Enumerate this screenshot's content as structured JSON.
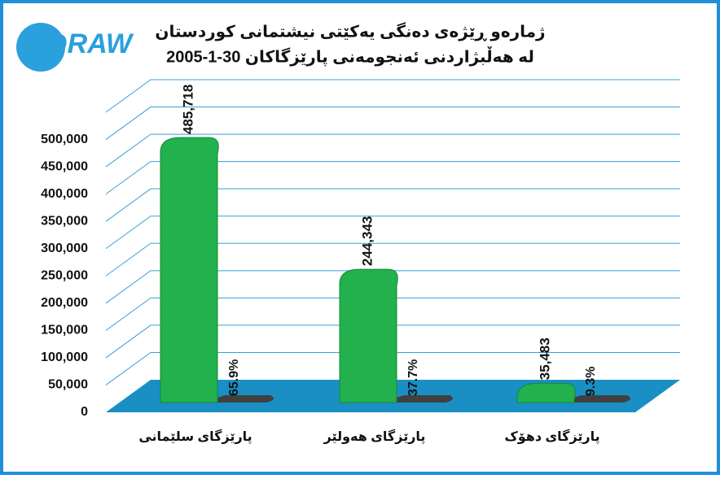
{
  "chart_data": {
    "type": "bar3d",
    "logo": "DRAW",
    "title": [
      "ژمارەو ڕێژەی دەنگی یەکێتی نیشتمانی کوردستان",
      "لە هەڵبژاردنی ئەنجومەنی پارێزگاکان 30-1-2005"
    ],
    "categories": [
      "پارێزگای سلێمانی",
      "پارێزگای هەولێر",
      "پارێزگای دهۆک"
    ],
    "series": [
      {
        "color": "#22b14c",
        "values": [
          485718,
          244343,
          35483
        ],
        "value_labels": [
          "485,718",
          "244,343",
          "35,483"
        ]
      },
      {
        "color": "#404040",
        "values": [
          65.9,
          37.7,
          9.3
        ],
        "value_labels": [
          "65.9%",
          "37.7%",
          "9.3%"
        ]
      }
    ],
    "ylim": [
      0,
      550000
    ],
    "yticks": [
      0,
      {
        "value": 50000,
        "label": "50,000"
      },
      {
        "value": 100000,
        "label": "100,000"
      },
      {
        "value": 150000,
        "label": "150,000"
      },
      {
        "value": 200000,
        "label": "200,000"
      },
      {
        "value": 250000,
        "label": "250,000"
      },
      {
        "value": 300000,
        "label": "300,000"
      },
      {
        "value": 350000,
        "label": "350,000"
      },
      {
        "value": 400000,
        "label": "400,000"
      },
      {
        "value": 450000,
        "label": "450,000"
      },
      {
        "value": 500000,
        "label": "500,000"
      }
    ],
    "grid": true,
    "floor_color": "#1a8fc4"
  }
}
